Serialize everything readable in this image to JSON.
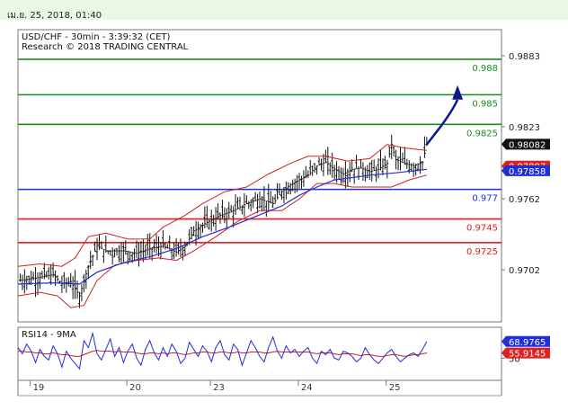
{
  "header": {
    "datetime": "เม.ย. 25, 2018, 01:40"
  },
  "chart_data": {
    "type": "candlestick",
    "title": "USD/CHF - 30min - 3:39:32 (CET)",
    "subtitle": "Research © 2018 TRADING CENTRAL",
    "ylim": [
      0.9658,
      0.9905
    ],
    "y_ticks": [
      0.9883,
      0.9823,
      0.9762,
      0.9702
    ],
    "x_tick_labels": [
      "19",
      "20",
      "23",
      "24",
      "25"
    ],
    "levels": [
      {
        "value": 0.988,
        "label": "0.988",
        "color": "#1a8c1a"
      },
      {
        "value": 0.985,
        "label": "0.985",
        "color": "#1a8c1a"
      },
      {
        "value": 0.9825,
        "label": "0.9825",
        "color": "#1a8c1a"
      },
      {
        "value": 0.977,
        "label": "0.977",
        "color": "#1f2fd6"
      },
      {
        "value": 0.9745,
        "label": "0.9745",
        "color": "#e02020"
      },
      {
        "value": 0.9725,
        "label": "0.9725",
        "color": "#e02020"
      }
    ],
    "price_tags": [
      {
        "value": 0.98082,
        "label": "0.98082",
        "color": "#111111"
      },
      {
        "value": 0.97897,
        "label": "0.97897",
        "color": "#e02020"
      },
      {
        "value": 0.97858,
        "label": "0.97858",
        "color": "#1f2fd6"
      }
    ],
    "close_path": [
      [
        0,
        0.9693
      ],
      [
        4,
        0.9695
      ],
      [
        8,
        0.9698
      ],
      [
        10,
        0.969
      ],
      [
        12,
        0.9692
      ],
      [
        14,
        0.968
      ],
      [
        16,
        0.9705
      ],
      [
        18,
        0.9722
      ],
      [
        20,
        0.9718
      ],
      [
        24,
        0.9718
      ],
      [
        27,
        0.9716
      ],
      [
        30,
        0.972
      ],
      [
        33,
        0.9722
      ],
      [
        36,
        0.9717
      ],
      [
        38,
        0.9722
      ],
      [
        40,
        0.9735
      ],
      [
        43,
        0.9742
      ],
      [
        46,
        0.9748
      ],
      [
        49,
        0.9752
      ],
      [
        52,
        0.9758
      ],
      [
        55,
        0.9762
      ],
      [
        58,
        0.9758
      ],
      [
        60,
        0.9768
      ],
      [
        62,
        0.9774
      ],
      [
        64,
        0.9778
      ],
      [
        66,
        0.9782
      ],
      [
        68,
        0.979
      ],
      [
        70,
        0.9793
      ],
      [
        72,
        0.9787
      ],
      [
        74,
        0.9783
      ],
      [
        76,
        0.9787
      ],
      [
        78,
        0.9788
      ],
      [
        80,
        0.9785
      ],
      [
        82,
        0.9787
      ],
      [
        84,
        0.9792
      ],
      [
        85,
        0.9808
      ],
      [
        86,
        0.9795
      ],
      [
        88,
        0.9792
      ],
      [
        90,
        0.979
      ],
      [
        92,
        0.9793
      ],
      [
        93,
        0.9808
      ]
    ],
    "bollinger_upper": [
      [
        0,
        0.9705
      ],
      [
        5,
        0.9707
      ],
      [
        10,
        0.9705
      ],
      [
        13,
        0.9712
      ],
      [
        16,
        0.973
      ],
      [
        20,
        0.9733
      ],
      [
        25,
        0.9728
      ],
      [
        30,
        0.9728
      ],
      [
        33,
        0.9738
      ],
      [
        38,
        0.9748
      ],
      [
        42,
        0.9758
      ],
      [
        47,
        0.9768
      ],
      [
        52,
        0.9772
      ],
      [
        57,
        0.9783
      ],
      [
        62,
        0.9792
      ],
      [
        66,
        0.9798
      ],
      [
        70,
        0.9798
      ],
      [
        75,
        0.9794
      ],
      [
        80,
        0.9796
      ],
      [
        84,
        0.9808
      ],
      [
        88,
        0.9805
      ],
      [
        93,
        0.9803
      ]
    ],
    "bollinger_lower": [
      [
        0,
        0.968
      ],
      [
        5,
        0.9683
      ],
      [
        9,
        0.968
      ],
      [
        12,
        0.967
      ],
      [
        15,
        0.9672
      ],
      [
        18,
        0.9693
      ],
      [
        22,
        0.9706
      ],
      [
        27,
        0.971
      ],
      [
        32,
        0.9712
      ],
      [
        36,
        0.971
      ],
      [
        40,
        0.9718
      ],
      [
        45,
        0.973
      ],
      [
        50,
        0.9743
      ],
      [
        55,
        0.9752
      ],
      [
        60,
        0.9752
      ],
      [
        64,
        0.9762
      ],
      [
        68,
        0.9775
      ],
      [
        72,
        0.9775
      ],
      [
        76,
        0.9772
      ],
      [
        80,
        0.9772
      ],
      [
        85,
        0.9772
      ],
      [
        89,
        0.9778
      ],
      [
        93,
        0.9782
      ]
    ],
    "moving_average": [
      [
        0,
        0.969
      ],
      [
        8,
        0.9691
      ],
      [
        14,
        0.969
      ],
      [
        18,
        0.97
      ],
      [
        24,
        0.9708
      ],
      [
        30,
        0.9713
      ],
      [
        36,
        0.972
      ],
      [
        42,
        0.973
      ],
      [
        48,
        0.9738
      ],
      [
        54,
        0.9747
      ],
      [
        60,
        0.9756
      ],
      [
        64,
        0.9765
      ],
      [
        68,
        0.9772
      ],
      [
        72,
        0.9778
      ],
      [
        76,
        0.978
      ],
      [
        80,
        0.9782
      ],
      [
        86,
        0.9784
      ],
      [
        93,
        0.9787
      ]
    ],
    "forecast_arrow": {
      "from": [
        93,
        0.9808
      ],
      "to": [
        100,
        0.9855
      ]
    },
    "x_range": [
      0,
      110
    ],
    "rsi": {
      "title": "RSI14 - 9MA",
      "ylim": [
        25,
        85
      ],
      "ticks": [
        50
      ],
      "tags": [
        {
          "value": 68.9765,
          "label": "68.9765",
          "color": "#1f2fd6"
        },
        {
          "value": 55.9145,
          "label": "55.9145",
          "color": "#e02020"
        }
      ],
      "rsi_values": [
        62,
        55,
        66,
        58,
        45,
        60,
        52,
        48,
        64,
        55,
        40,
        58,
        50,
        44,
        38,
        70,
        62,
        78,
        55,
        48,
        60,
        72,
        52,
        62,
        45,
        58,
        66,
        50,
        42,
        60,
        70,
        56,
        48,
        62,
        52,
        66,
        58,
        44,
        50,
        68,
        60,
        52,
        64,
        58,
        46,
        62,
        70,
        54,
        48,
        66,
        60,
        42,
        56,
        70,
        62,
        52,
        46,
        62,
        74,
        58,
        50,
        64,
        56,
        60,
        52,
        58,
        62,
        50,
        44,
        58,
        54,
        60,
        50,
        48,
        58,
        56,
        52,
        46,
        50,
        62,
        54,
        48,
        44,
        50,
        56,
        60,
        52,
        46,
        50,
        54,
        56,
        52,
        60,
        69
      ],
      "ma_values": [
        58,
        58,
        57,
        57,
        56,
        56,
        55,
        55,
        56,
        55,
        54,
        54,
        53,
        52,
        52,
        54,
        56,
        58,
        59,
        58,
        58,
        58,
        57,
        58,
        57,
        57,
        57,
        56,
        55,
        55,
        56,
        56,
        55,
        56,
        55,
        56,
        56,
        55,
        54,
        55,
        56,
        56,
        57,
        57,
        56,
        56,
        57,
        57,
        56,
        56,
        57,
        56,
        56,
        57,
        57,
        57,
        56,
        56,
        57,
        58,
        57,
        57,
        57,
        57,
        57,
        57,
        57,
        56,
        55,
        56,
        56,
        56,
        55,
        54,
        55,
        55,
        55,
        54,
        53,
        54,
        54,
        53,
        52,
        52,
        53,
        54,
        54,
        53,
        52,
        53,
        54,
        54,
        55,
        56
      ]
    }
  }
}
